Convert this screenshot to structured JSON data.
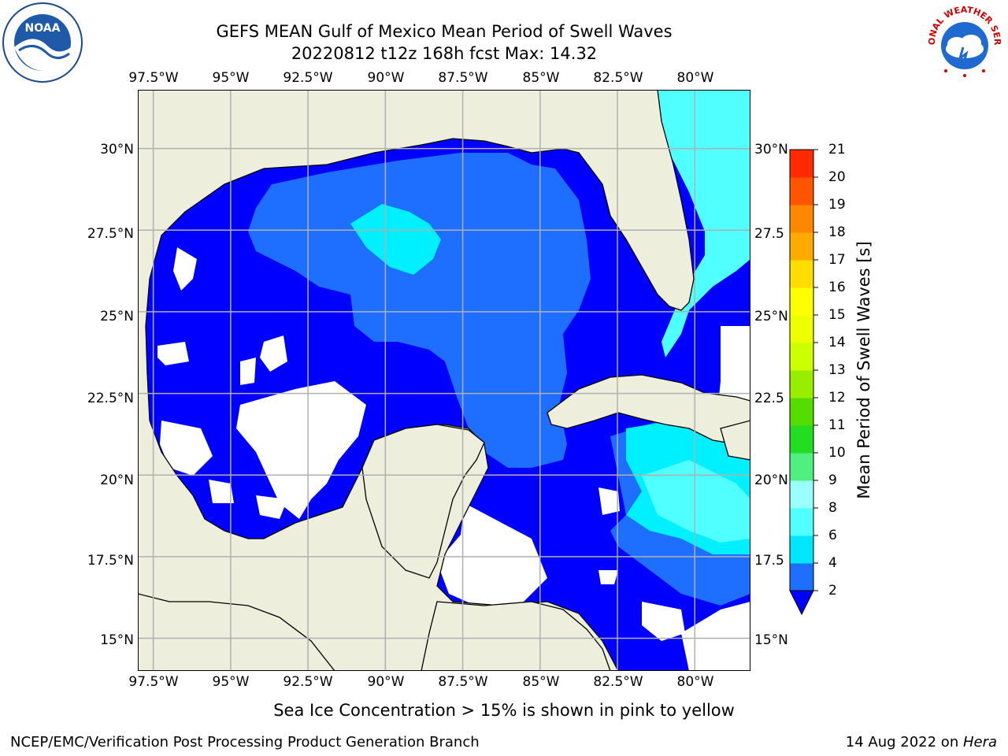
{
  "header": {
    "title_line1": "GEFS MEAN Gulf of Mexico Mean Period of Swell Waves",
    "title_line2": "20220812 t12z 168h fcst   Max: 14.32"
  },
  "map": {
    "lon_labels": [
      "97.5°W",
      "95°W",
      "92.5°W",
      "90°W",
      "87.5°W",
      "85°W",
      "82.5°W",
      "80°W"
    ],
    "lat_labels_left": [
      "30°N",
      "27.5°N",
      "25°N",
      "22.5°N",
      "20°N",
      "17.5°N",
      "15°N"
    ],
    "lat_labels_right": [
      "30°N",
      "27.5",
      "25°N",
      "22.5",
      "20°N",
      "17.5",
      "15°N"
    ],
    "lon_range": [
      -98.0,
      -78.2
    ],
    "lat_range": [
      14.0,
      31.8
    ],
    "land_color": "#eeeedd",
    "no_data_color": "#ffffff",
    "gridline_color": "#b0b0b0"
  },
  "colorbar": {
    "label": "Mean Period of Swell Waves [s]",
    "ticks": [
      "2",
      "4",
      "6",
      "8",
      "9",
      "10",
      "11",
      "12",
      "13",
      "14",
      "15",
      "16",
      "17",
      "18",
      "19",
      "20",
      "21"
    ],
    "colors": [
      "#1e6eff",
      "#00e6ff",
      "#50ffff",
      "#99ffff",
      "#50f080",
      "#22dd22",
      "#55dd00",
      "#99ee00",
      "#ccff00",
      "#eeff00",
      "#ffff00",
      "#ffdd00",
      "#ffaa00",
      "#ff8800",
      "#ff5500",
      "#ff2a00"
    ],
    "extend_color": "#0000ff"
  },
  "footer": {
    "sea_ice_note": "Sea Ice Concentration > 15% is shown in pink to yellow",
    "credit": "NCEP/EMC/Verification Post Processing Product Generation Branch",
    "date": "14 Aug 2022 on ",
    "machine": "Hera"
  },
  "logos": {
    "left_icon": "noaa-logo",
    "left_text": "NOAA",
    "right_icon": "nws-logo",
    "right_text": "NATIONAL WEATHER SERVICE"
  }
}
